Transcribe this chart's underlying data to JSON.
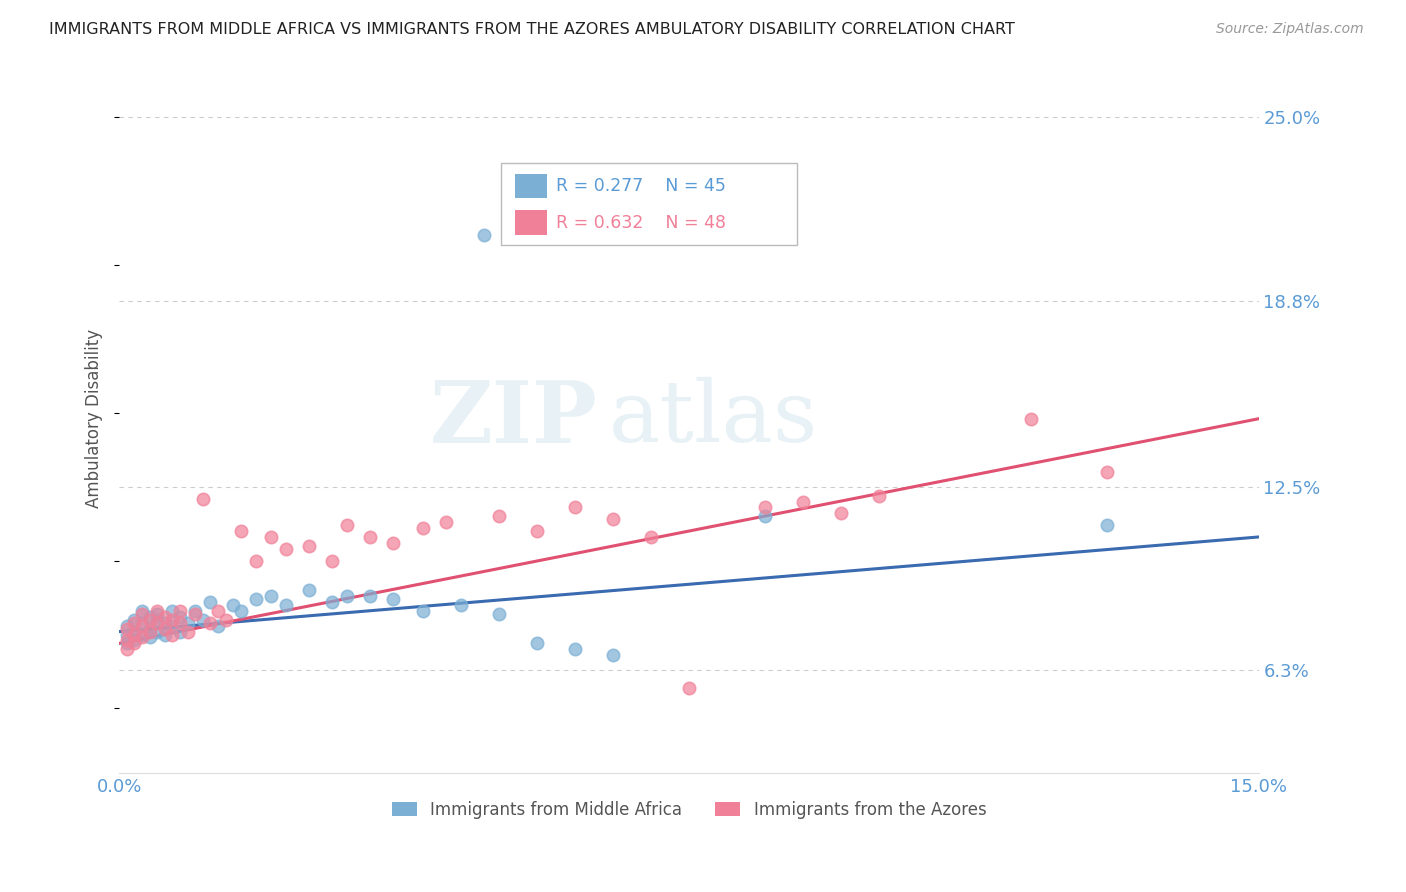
{
  "title": "IMMIGRANTS FROM MIDDLE AFRICA VS IMMIGRANTS FROM THE AZORES AMBULATORY DISABILITY CORRELATION CHART",
  "source": "Source: ZipAtlas.com",
  "ylabel": "Ambulatory Disability",
  "legend_label_1": "Immigrants from Middle Africa",
  "legend_label_2": "Immigrants from the Azores",
  "R1": 0.277,
  "N1": 45,
  "R2": 0.632,
  "N2": 48,
  "color1": "#7bafd4",
  "color2": "#f08098",
  "trend_color1": "#3a6ab0",
  "trend_color2": "#e05070",
  "xmin": 0.0,
  "xmax": 0.15,
  "ymin": 0.028,
  "ymax": 0.268,
  "yticks": [
    0.063,
    0.125,
    0.188,
    0.25
  ],
  "ytick_labels": [
    "6.3%",
    "12.5%",
    "18.8%",
    "25.0%"
  ],
  "xticks": [
    0.0,
    0.025,
    0.05,
    0.075,
    0.1,
    0.125,
    0.15
  ],
  "xtick_labels": [
    "0.0%",
    "",
    "",
    "",
    "",
    "",
    "15.0%"
  ],
  "watermark_zip": "ZIP",
  "watermark_atlas": "atlas",
  "background_color": "#ffffff",
  "grid_color": "#cccccc",
  "title_color": "#222222",
  "axis_label_color": "#555555",
  "tick_label_color": "#5b9bd5",
  "blue_scatter_x": [
    0.001,
    0.001,
    0.001,
    0.002,
    0.002,
    0.002,
    0.003,
    0.003,
    0.003,
    0.004,
    0.004,
    0.004,
    0.005,
    0.005,
    0.005,
    0.006,
    0.006,
    0.007,
    0.007,
    0.008,
    0.008,
    0.009,
    0.01,
    0.011,
    0.012,
    0.013,
    0.015,
    0.016,
    0.018,
    0.02,
    0.022,
    0.025,
    0.028,
    0.03,
    0.033,
    0.036,
    0.04,
    0.045,
    0.05,
    0.055,
    0.06,
    0.065,
    0.085,
    0.13,
    0.048
  ],
  "blue_scatter_y": [
    0.075,
    0.078,
    0.072,
    0.076,
    0.08,
    0.073,
    0.079,
    0.083,
    0.075,
    0.077,
    0.081,
    0.074,
    0.08,
    0.076,
    0.082,
    0.079,
    0.075,
    0.078,
    0.083,
    0.076,
    0.081,
    0.079,
    0.083,
    0.08,
    0.086,
    0.078,
    0.085,
    0.083,
    0.087,
    0.088,
    0.085,
    0.09,
    0.086,
    0.088,
    0.088,
    0.087,
    0.083,
    0.085,
    0.082,
    0.072,
    0.07,
    0.068,
    0.115,
    0.112,
    0.21
  ],
  "pink_scatter_x": [
    0.001,
    0.001,
    0.001,
    0.002,
    0.002,
    0.002,
    0.003,
    0.003,
    0.003,
    0.004,
    0.004,
    0.005,
    0.005,
    0.006,
    0.006,
    0.007,
    0.007,
    0.008,
    0.008,
    0.009,
    0.01,
    0.011,
    0.012,
    0.013,
    0.014,
    0.016,
    0.018,
    0.02,
    0.022,
    0.025,
    0.028,
    0.03,
    0.033,
    0.036,
    0.04,
    0.043,
    0.05,
    0.055,
    0.06,
    0.065,
    0.07,
    0.075,
    0.085,
    0.09,
    0.095,
    0.1,
    0.12,
    0.13
  ],
  "pink_scatter_y": [
    0.073,
    0.077,
    0.07,
    0.075,
    0.079,
    0.072,
    0.078,
    0.082,
    0.074,
    0.076,
    0.08,
    0.079,
    0.083,
    0.077,
    0.081,
    0.08,
    0.075,
    0.079,
    0.083,
    0.076,
    0.082,
    0.121,
    0.079,
    0.083,
    0.08,
    0.11,
    0.1,
    0.108,
    0.104,
    0.105,
    0.1,
    0.112,
    0.108,
    0.106,
    0.111,
    0.113,
    0.115,
    0.11,
    0.118,
    0.114,
    0.108,
    0.057,
    0.118,
    0.12,
    0.116,
    0.122,
    0.148,
    0.13
  ],
  "trend1_x0": 0.0,
  "trend1_x1": 0.15,
  "trend1_y0": 0.076,
  "trend1_y1": 0.108,
  "trend2_x0": 0.0,
  "trend2_x1": 0.15,
  "trend2_y0": 0.072,
  "trend2_y1": 0.148
}
